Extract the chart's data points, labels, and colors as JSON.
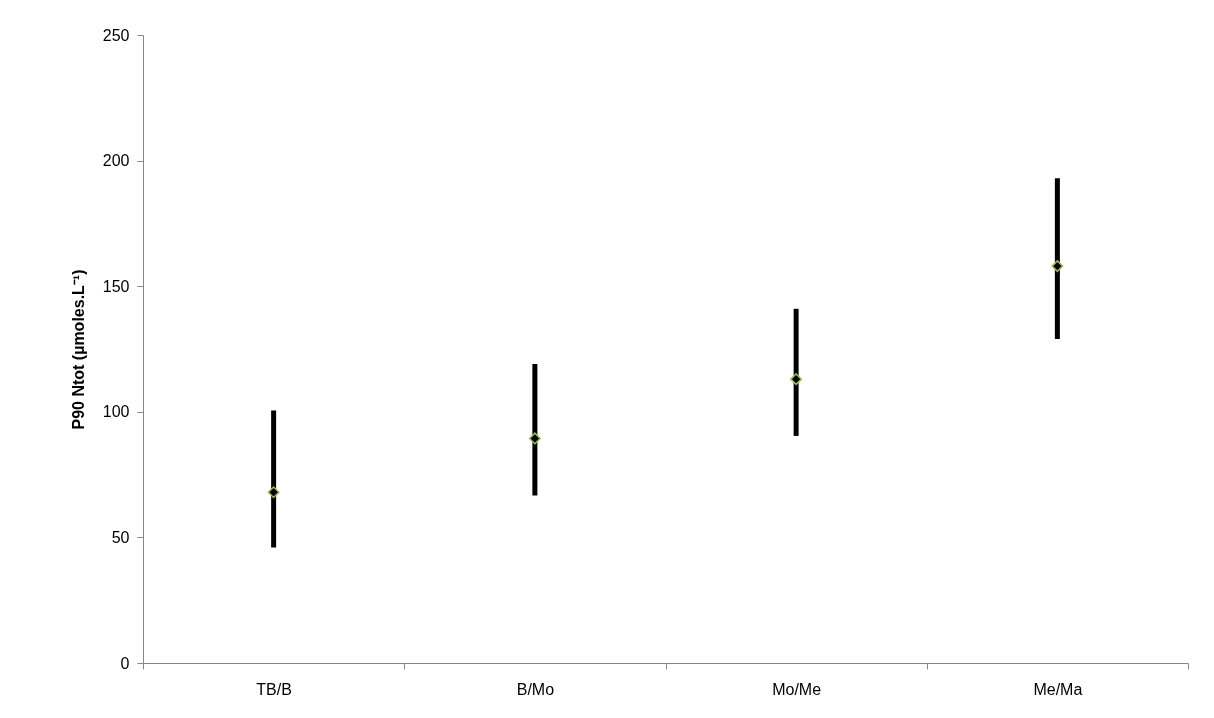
{
  "chart_data": {
    "type": "scatter",
    "ylabel": "P90 Ntot (µmoles.L⁻¹)",
    "categories": [
      "TB/B",
      "B/Mo",
      "Mo/Me",
      "Me/Ma"
    ],
    "series": [
      {
        "color": "#000000",
        "values": [
          68,
          89.4,
          113,
          158
        ],
        "errors": [
          [
            46,
            100.5
          ],
          [
            66.7,
            119
          ],
          [
            90.4,
            141
          ],
          [
            129,
            193
          ]
        ]
      }
    ],
    "marker": "diamond",
    "ylim": [
      0,
      250
    ],
    "yticks": [
      0,
      50,
      100,
      150,
      200,
      250
    ],
    "grid": false
  }
}
